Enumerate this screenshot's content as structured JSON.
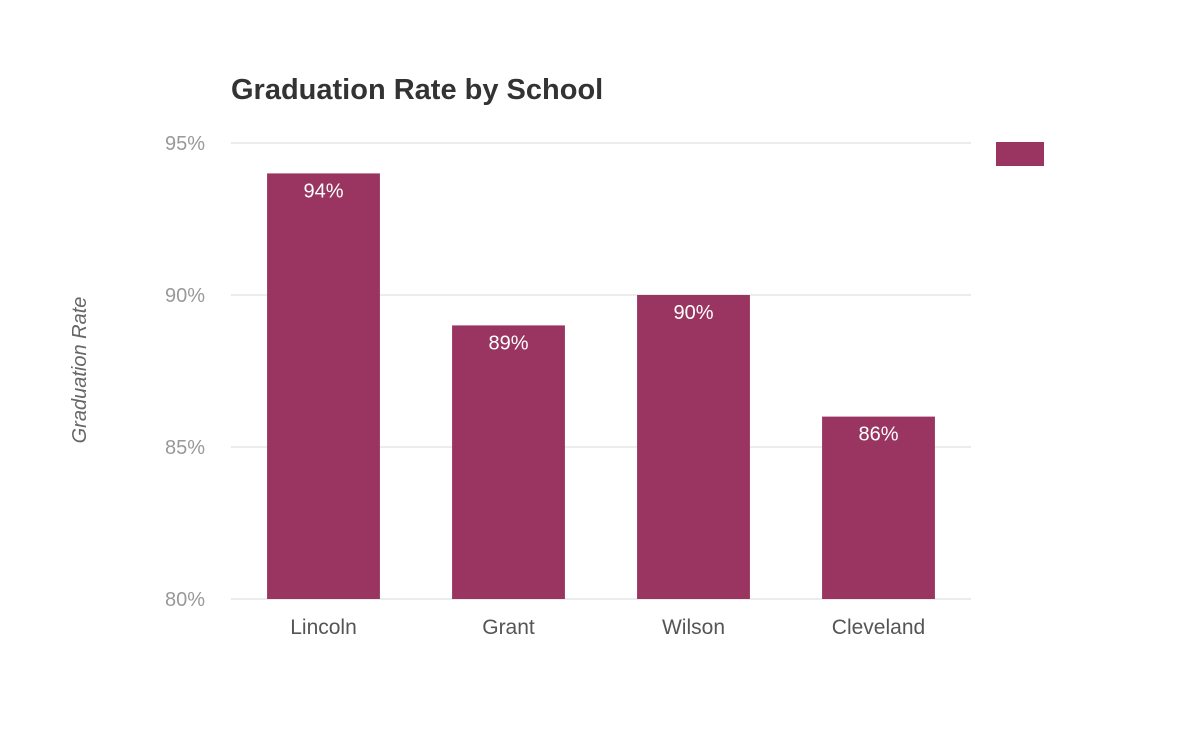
{
  "chart_data": {
    "type": "bar",
    "title": "Graduation Rate by School",
    "xlabel": "",
    "ylabel": "Graduation Rate",
    "categories": [
      "Lincoln",
      "Grant",
      "Wilson",
      "Cleveland"
    ],
    "series": [
      {
        "values": [
          94,
          89,
          90,
          86
        ]
      }
    ],
    "data_labels": [
      "94%",
      "89%",
      "90%",
      "86%"
    ],
    "ylim": [
      80,
      95
    ],
    "yticks": [
      80,
      85,
      90,
      95
    ],
    "ytick_labels": [
      "80%",
      "85%",
      "90%",
      "95%"
    ],
    "grid": true,
    "legend": {
      "position": "top-right",
      "entries": [
        ""
      ]
    },
    "colors": {
      "bar": "#993560",
      "text": "#333333",
      "grid": "#e6e6e6"
    }
  }
}
